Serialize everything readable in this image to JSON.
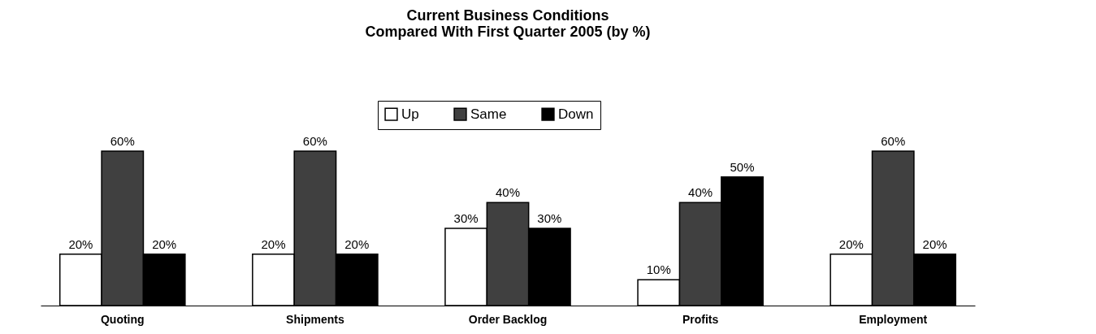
{
  "chart_data": {
    "type": "bar",
    "title": [
      "Current Business Conditions",
      "Compared With First Quarter 2005 (by %)"
    ],
    "categories": [
      "Quoting",
      "Shipments",
      "Order Backlog",
      "Profits",
      "Employment"
    ],
    "series": [
      {
        "name": "Up",
        "color": "#ffffff",
        "values": [
          20,
          20,
          30,
          10,
          20
        ],
        "value_labels": [
          "20%",
          "20%",
          "30%",
          "10%",
          "20%"
        ]
      },
      {
        "name": "Same",
        "color": "#404040",
        "values": [
          60,
          60,
          40,
          40,
          60
        ],
        "value_labels": [
          "60%",
          "60%",
          "40%",
          "40%",
          "60%"
        ]
      },
      {
        "name": "Down",
        "color": "#000000",
        "values": [
          20,
          20,
          30,
          50,
          20
        ],
        "value_labels": [
          "20%",
          "20%",
          "30%",
          "50%",
          "20%"
        ]
      }
    ],
    "legend": "top",
    "grid": false
  }
}
